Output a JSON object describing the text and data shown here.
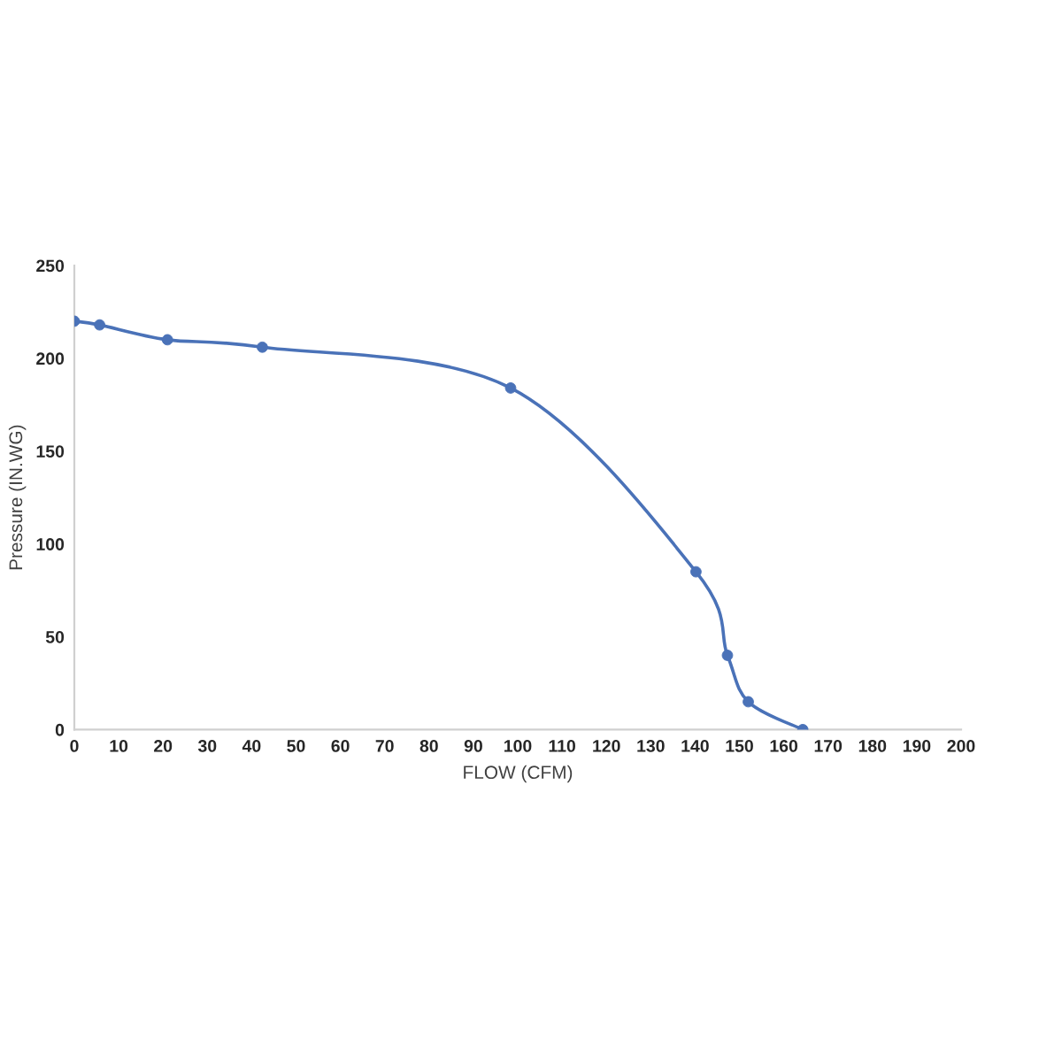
{
  "chart_data": {
    "type": "line",
    "xlabel": "FLOW (CFM)",
    "ylabel": "Pressure (IN.WG)",
    "series": [
      {
        "color": "#4a72b8",
        "x": [
          0,
          5.7,
          21,
          42.4,
          98.4,
          140.2,
          147.3,
          152,
          164.3
        ],
        "values": [
          220,
          218,
          210,
          206,
          184,
          85,
          40,
          15,
          0
        ]
      }
    ],
    "xlim": [
      0,
      200
    ],
    "xticks": [
      0,
      10,
      20,
      30,
      40,
      50,
      60,
      70,
      80,
      90,
      100,
      110,
      120,
      130,
      140,
      150,
      160,
      170,
      180,
      190,
      200
    ],
    "ylim": [
      0,
      250
    ],
    "yticks": [
      0,
      50,
      100,
      150,
      200,
      250
    ],
    "grid": false,
    "marker": "circle",
    "line_style": "solid"
  }
}
